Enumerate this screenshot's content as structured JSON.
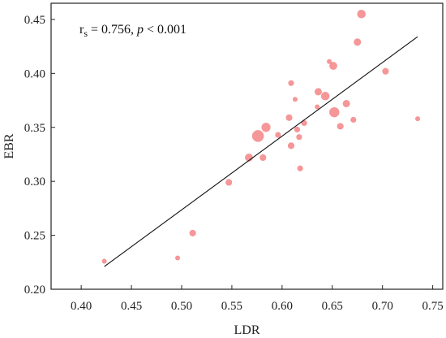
{
  "chart_data": {
    "type": "scatter",
    "title": "",
    "xlabel": "LDR",
    "ylabel": "EBR",
    "xlim": [
      0.37,
      0.76
    ],
    "ylim": [
      0.2,
      0.465
    ],
    "xticks": [
      "0.40",
      "0.45",
      "0.50",
      "0.55",
      "0.60",
      "0.65",
      "0.70",
      "0.75"
    ],
    "yticks": [
      "0.20",
      "0.25",
      "0.30",
      "0.35",
      "0.40",
      "0.45"
    ],
    "xtick_values": [
      0.4,
      0.45,
      0.5,
      0.55,
      0.6,
      0.65,
      0.7,
      0.75
    ],
    "ytick_values": [
      0.2,
      0.25,
      0.3,
      0.35,
      0.4,
      0.45
    ],
    "grid": false,
    "point_color": "#f4888a",
    "fit_line_color": "#111111",
    "annotation": {
      "r_symbol": "r",
      "r_subscript": "s",
      "r_value_text": " = 0.756, ",
      "p_symbol": "p",
      "p_value_text": " < 0.001"
    },
    "fit_line": {
      "x": [
        0.423,
        0.735
      ],
      "y": [
        0.221,
        0.434
      ]
    },
    "points": [
      {
        "x": 0.423,
        "y": 0.226,
        "size": 1
      },
      {
        "x": 0.496,
        "y": 0.229,
        "size": 1
      },
      {
        "x": 0.511,
        "y": 0.252,
        "size": 2
      },
      {
        "x": 0.547,
        "y": 0.299,
        "size": 2
      },
      {
        "x": 0.567,
        "y": 0.322,
        "size": 3
      },
      {
        "x": 0.576,
        "y": 0.342,
        "size": 7
      },
      {
        "x": 0.581,
        "y": 0.322,
        "size": 2
      },
      {
        "x": 0.584,
        "y": 0.35,
        "size": 4
      },
      {
        "x": 0.596,
        "y": 0.343,
        "size": 1.5
      },
      {
        "x": 0.607,
        "y": 0.359,
        "size": 2
      },
      {
        "x": 0.609,
        "y": 0.333,
        "size": 2
      },
      {
        "x": 0.609,
        "y": 0.391,
        "size": 1.5
      },
      {
        "x": 0.613,
        "y": 0.376,
        "size": 1
      },
      {
        "x": 0.615,
        "y": 0.348,
        "size": 1.5
      },
      {
        "x": 0.617,
        "y": 0.341,
        "size": 1.5
      },
      {
        "x": 0.618,
        "y": 0.312,
        "size": 1.5
      },
      {
        "x": 0.622,
        "y": 0.354,
        "size": 1.5
      },
      {
        "x": 0.635,
        "y": 0.369,
        "size": 1
      },
      {
        "x": 0.636,
        "y": 0.383,
        "size": 2.5
      },
      {
        "x": 0.643,
        "y": 0.379,
        "size": 3.5
      },
      {
        "x": 0.647,
        "y": 0.411,
        "size": 1
      },
      {
        "x": 0.651,
        "y": 0.407,
        "size": 3
      },
      {
        "x": 0.652,
        "y": 0.364,
        "size": 5
      },
      {
        "x": 0.658,
        "y": 0.351,
        "size": 2
      },
      {
        "x": 0.664,
        "y": 0.372,
        "size": 2.5
      },
      {
        "x": 0.671,
        "y": 0.357,
        "size": 1.5
      },
      {
        "x": 0.675,
        "y": 0.429,
        "size": 2.5
      },
      {
        "x": 0.679,
        "y": 0.455,
        "size": 3.5
      },
      {
        "x": 0.703,
        "y": 0.402,
        "size": 2
      },
      {
        "x": 0.735,
        "y": 0.358,
        "size": 1
      }
    ]
  }
}
